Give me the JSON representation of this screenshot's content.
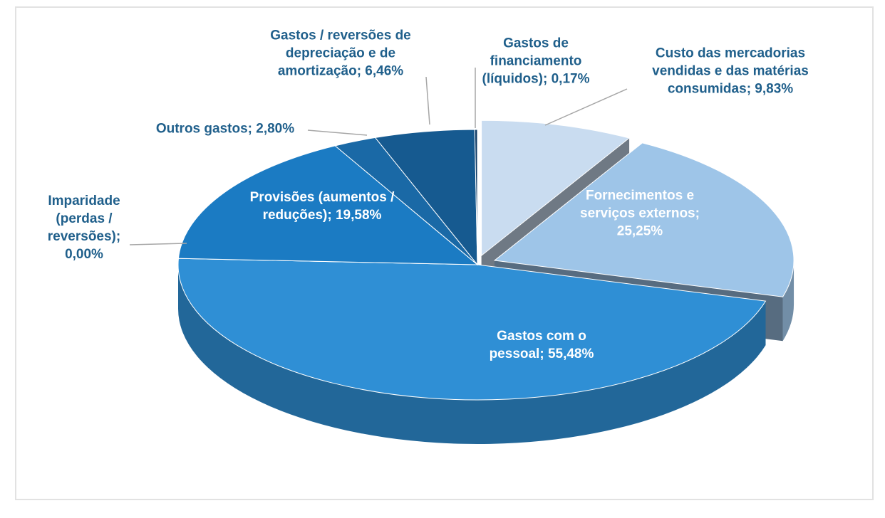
{
  "chart_data": {
    "type": "pie",
    "categories": [
      "Custo das mercadorias vendidas e das matérias consumidas",
      "Fornecimentos e serviços externos",
      "Gastos com o pessoal",
      "Imparidade (perdas / reversões)",
      "Provisões (aumentos / reduções)",
      "Outros gastos",
      "Gastos / reversões de depreciação e de amortização",
      "Gastos de financiamento (líquidos)"
    ],
    "values": [
      9.83,
      25.25,
      55.48,
      0.0,
      19.58,
      2.8,
      6.46,
      0.17
    ],
    "value_labels": [
      "9,83%",
      "25,25%",
      "55,48%",
      "0,00%",
      "19,58%",
      "2,80%",
      "6,46%",
      "0,17%"
    ],
    "label_separator": "; ",
    "colors": [
      "#c9dcf0",
      "#9ec5e8",
      "#2f8fd5",
      "#1d3a5c",
      "#1b7bc3",
      "#1a69a6",
      "#165a90",
      "#0e3b66"
    ]
  }
}
